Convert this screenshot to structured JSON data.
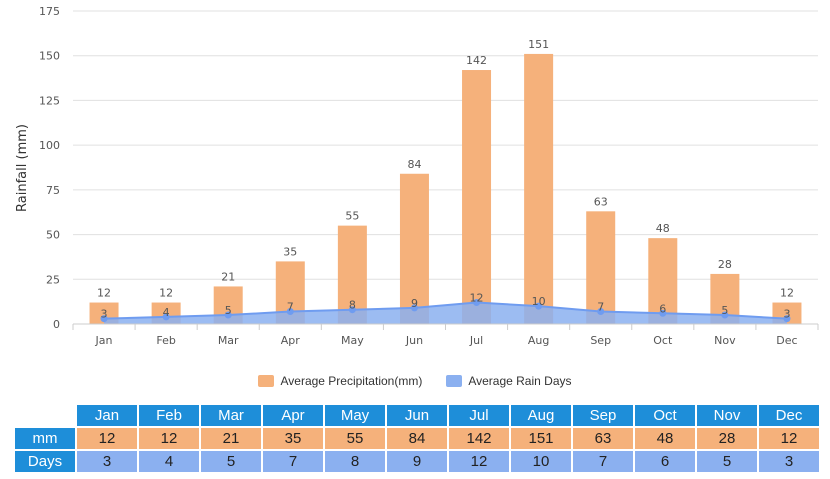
{
  "chart_data": {
    "type": "bar",
    "title": "",
    "xlabel": "",
    "ylabel": "Rainfall (mm)",
    "ylim": [
      0,
      175
    ],
    "yticks": [
      0,
      25,
      50,
      75,
      100,
      125,
      150,
      175
    ],
    "categories": [
      "Jan",
      "Feb",
      "Mar",
      "Apr",
      "May",
      "Jun",
      "Jul",
      "Aug",
      "Sep",
      "Oct",
      "Nov",
      "Dec"
    ],
    "series": [
      {
        "name": "Average Precipitation(mm)",
        "type": "bar",
        "values": [
          12,
          12,
          21,
          35,
          55,
          84,
          142,
          151,
          63,
          48,
          28,
          12
        ]
      },
      {
        "name": "Average Rain Days",
        "type": "area",
        "values": [
          3,
          4,
          5,
          7,
          8,
          9,
          12,
          10,
          7,
          6,
          5,
          3
        ]
      }
    ],
    "grid": true,
    "legend": "bottom-center"
  },
  "colors": {
    "precip": "#f5b17b",
    "days": "#8bb0f0",
    "days_line": "#6f9cf0",
    "header": "#1e8ed9",
    "grid": "#e0e0e0",
    "axis": "#cccccc",
    "label": "#555555"
  },
  "legend": {
    "precip_label": "Average Precipitation(mm)",
    "days_label": "Average Rain Days"
  },
  "table": {
    "months": [
      "Jan",
      "Feb",
      "Mar",
      "Apr",
      "May",
      "Jun",
      "Jul",
      "Aug",
      "Sep",
      "Oct",
      "Nov",
      "Dec"
    ],
    "mm_label": "mm",
    "days_label": "Days",
    "mm": [
      "12",
      "12",
      "21",
      "35",
      "55",
      "84",
      "142",
      "151",
      "63",
      "48",
      "28",
      "12"
    ],
    "days": [
      "3",
      "4",
      "5",
      "7",
      "8",
      "9",
      "12",
      "10",
      "7",
      "6",
      "5",
      "3"
    ]
  }
}
